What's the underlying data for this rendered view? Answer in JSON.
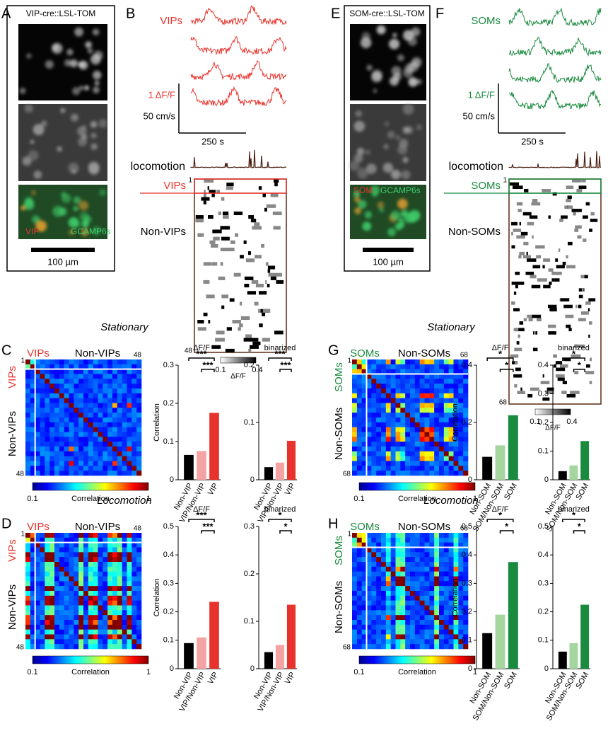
{
  "panels": {
    "A": {
      "label": "A",
      "title": "VIP-cre::LSL-TOM",
      "overlay_red": "VIP",
      "overlay_green": "GCAMP6s",
      "scale_bar": "100 µm"
    },
    "B": {
      "label": "B",
      "trace_label": "VIPs",
      "scale_y1": "1 ΔF/F",
      "scale_y2": "50 cm/s",
      "scale_x": "250 s",
      "locomotion": "locomotion",
      "raster_top": "VIPs",
      "raster_bottom": "Non-VIPs",
      "raster_first": "1",
      "raster_last": "48",
      "cbar_min": "0.1",
      "cbar_label": "ΔF/F",
      "cbar_max": "0.4"
    },
    "E": {
      "label": "E",
      "title": "SOM-cre::LSL-TOM",
      "overlay_red": "SOM",
      "overlay_green": "GCAMP6s",
      "scale_bar": "100 µm"
    },
    "F": {
      "label": "F",
      "trace_label": "SOMs",
      "scale_y1": "1 ΔF/F",
      "scale_y2": "50 cm/s",
      "scale_x": "250 s",
      "locomotion": "locomotion",
      "raster_top": "SOMs",
      "raster_bottom": "Non-SOMs",
      "raster_first": "1",
      "raster_last": "68",
      "cbar_min": "0.1",
      "cbar_label": "ΔF/F",
      "cbar_max": "0.4"
    },
    "C": {
      "label": "C",
      "condition": "Stationary",
      "top_a": "VIPs",
      "top_b": "Non-VIPs",
      "left_a": "VIPs",
      "left_b": "Non-VIPs",
      "first": "1",
      "last_top": "48",
      "last_left": "48",
      "cbar_min": "0.1",
      "cbar_label": "Correlation",
      "cbar_max": "1"
    },
    "D": {
      "label": "D",
      "condition": "Locomotion",
      "top_a": "VIPs",
      "top_b": "Non-VIPs",
      "left_a": "VIPs",
      "left_b": "Non-VIPs",
      "first": "1",
      "last_top": "48",
      "last_left": "48",
      "cbar_min": "0.1",
      "cbar_label": "Correlation",
      "cbar_max": "1"
    },
    "G": {
      "label": "G",
      "condition": "Stationary",
      "top_a": "SOMs",
      "top_b": "Non-SOMs",
      "left_a": "SOMs",
      "left_b": "Non-SOMs",
      "first": "1",
      "last_top": "68",
      "last_left": "68",
      "cbar_min": "0.1",
      "cbar_label": "Correlation",
      "cbar_max": "1"
    },
    "H": {
      "label": "H",
      "condition": "Locomotion",
      "top_a": "SOMs",
      "top_b": "Non-SOMs",
      "left_a": "SOMs",
      "left_b": "Non-SOMs",
      "first": "1",
      "last_top": "68",
      "last_left": "68",
      "cbar_min": "0.1",
      "cbar_label": "Correlation",
      "cbar_max": "1"
    }
  },
  "chart_data": [
    {
      "type": "bar",
      "title": "ΔF/F",
      "y_label": "Correlation",
      "categories": [
        "Non-VIP",
        "VIP/Non-VIP",
        "VIP"
      ],
      "values": [
        0.065,
        0.075,
        0.175
      ],
      "colors": [
        "#000000",
        "#f4a3a3",
        "#e8332c"
      ],
      "ylim": [
        0,
        0.3
      ],
      "yticks": [
        0,
        0.1,
        0.2,
        0.3
      ],
      "significance": [
        "***",
        "***"
      ]
    },
    {
      "type": "bar",
      "title": "binarized",
      "categories": [
        "Non-VIP",
        "VIP/Non-VIP",
        "VIP"
      ],
      "values": [
        0.022,
        0.03,
        0.068
      ],
      "colors": [
        "#000000",
        "#f4a3a3",
        "#e8332c"
      ],
      "ylim": [
        0,
        0.2
      ],
      "yticks": [
        0,
        0.1,
        0.2
      ],
      "significance": [
        "***",
        "***"
      ]
    },
    {
      "type": "bar",
      "title": "ΔF/F",
      "y_label": "Correlation",
      "categories": [
        "Non-VIP",
        "VIP/Non-VIP",
        "VIP"
      ],
      "values": [
        0.09,
        0.11,
        0.235
      ],
      "colors": [
        "#000000",
        "#f4a3a3",
        "#e8332c"
      ],
      "ylim": [
        0,
        0.5
      ],
      "yticks": [
        0,
        0.1,
        0.2,
        0.3,
        0.4,
        0.5
      ],
      "significance": [
        "***",
        "***"
      ]
    },
    {
      "type": "bar",
      "title": "binarized",
      "categories": [
        "Non-VIP",
        "VIP/Non-VIP",
        "VIP"
      ],
      "values": [
        0.035,
        0.05,
        0.135
      ],
      "colors": [
        "#000000",
        "#f4a3a3",
        "#e8332c"
      ],
      "ylim": [
        0,
        0.3
      ],
      "yticks": [
        0,
        0.1,
        0.2,
        0.3
      ],
      "significance": [
        "*",
        "*"
      ]
    },
    {
      "type": "bar",
      "title": "ΔF/F",
      "y_label": "Correlation",
      "categories": [
        "Non-SOM",
        "SOM/Non-SOM",
        "SOM"
      ],
      "values": [
        0.08,
        0.12,
        0.225
      ],
      "colors": [
        "#000000",
        "#a5d6a0",
        "#1a8a3e"
      ],
      "ylim": [
        0,
        0.4
      ],
      "yticks": [
        0,
        0.2,
        0.4
      ],
      "significance": [
        "*",
        "*"
      ]
    },
    {
      "type": "bar",
      "title": "binarized",
      "categories": [
        "Non-SOM",
        "SOM/Non-SOM",
        "SOM"
      ],
      "values": [
        0.03,
        0.05,
        0.135
      ],
      "colors": [
        "#000000",
        "#a5d6a0",
        "#1a8a3e"
      ],
      "ylim": [
        0,
        0.4
      ],
      "yticks": [
        0,
        0.1,
        0.2,
        0.3,
        0.4
      ],
      "significance": [
        "*",
        "*"
      ]
    },
    {
      "type": "bar",
      "title": "ΔF/F",
      "y_label": "Correlation",
      "categories": [
        "Non-SOM",
        "SOM/Non-SOM",
        "SOM"
      ],
      "values": [
        0.125,
        0.19,
        0.375
      ],
      "colors": [
        "#000000",
        "#a5d6a0",
        "#1a8a3e"
      ],
      "ylim": [
        0,
        0.5
      ],
      "yticks": [
        0,
        0.1,
        0.2,
        0.3,
        0.4,
        0.5
      ],
      "significance": [
        "*",
        "*"
      ]
    },
    {
      "type": "bar",
      "title": "binarized",
      "categories": [
        "Non-SOM",
        "SOM/Non-SOM",
        "SOM"
      ],
      "values": [
        0.06,
        0.09,
        0.225
      ],
      "colors": [
        "#000000",
        "#a5d6a0",
        "#1a8a3e"
      ],
      "ylim": [
        0,
        0.5
      ],
      "yticks": [
        0,
        0.1,
        0.2,
        0.3,
        0.4,
        0.5
      ],
      "significance": [
        "*",
        "*"
      ]
    }
  ]
}
